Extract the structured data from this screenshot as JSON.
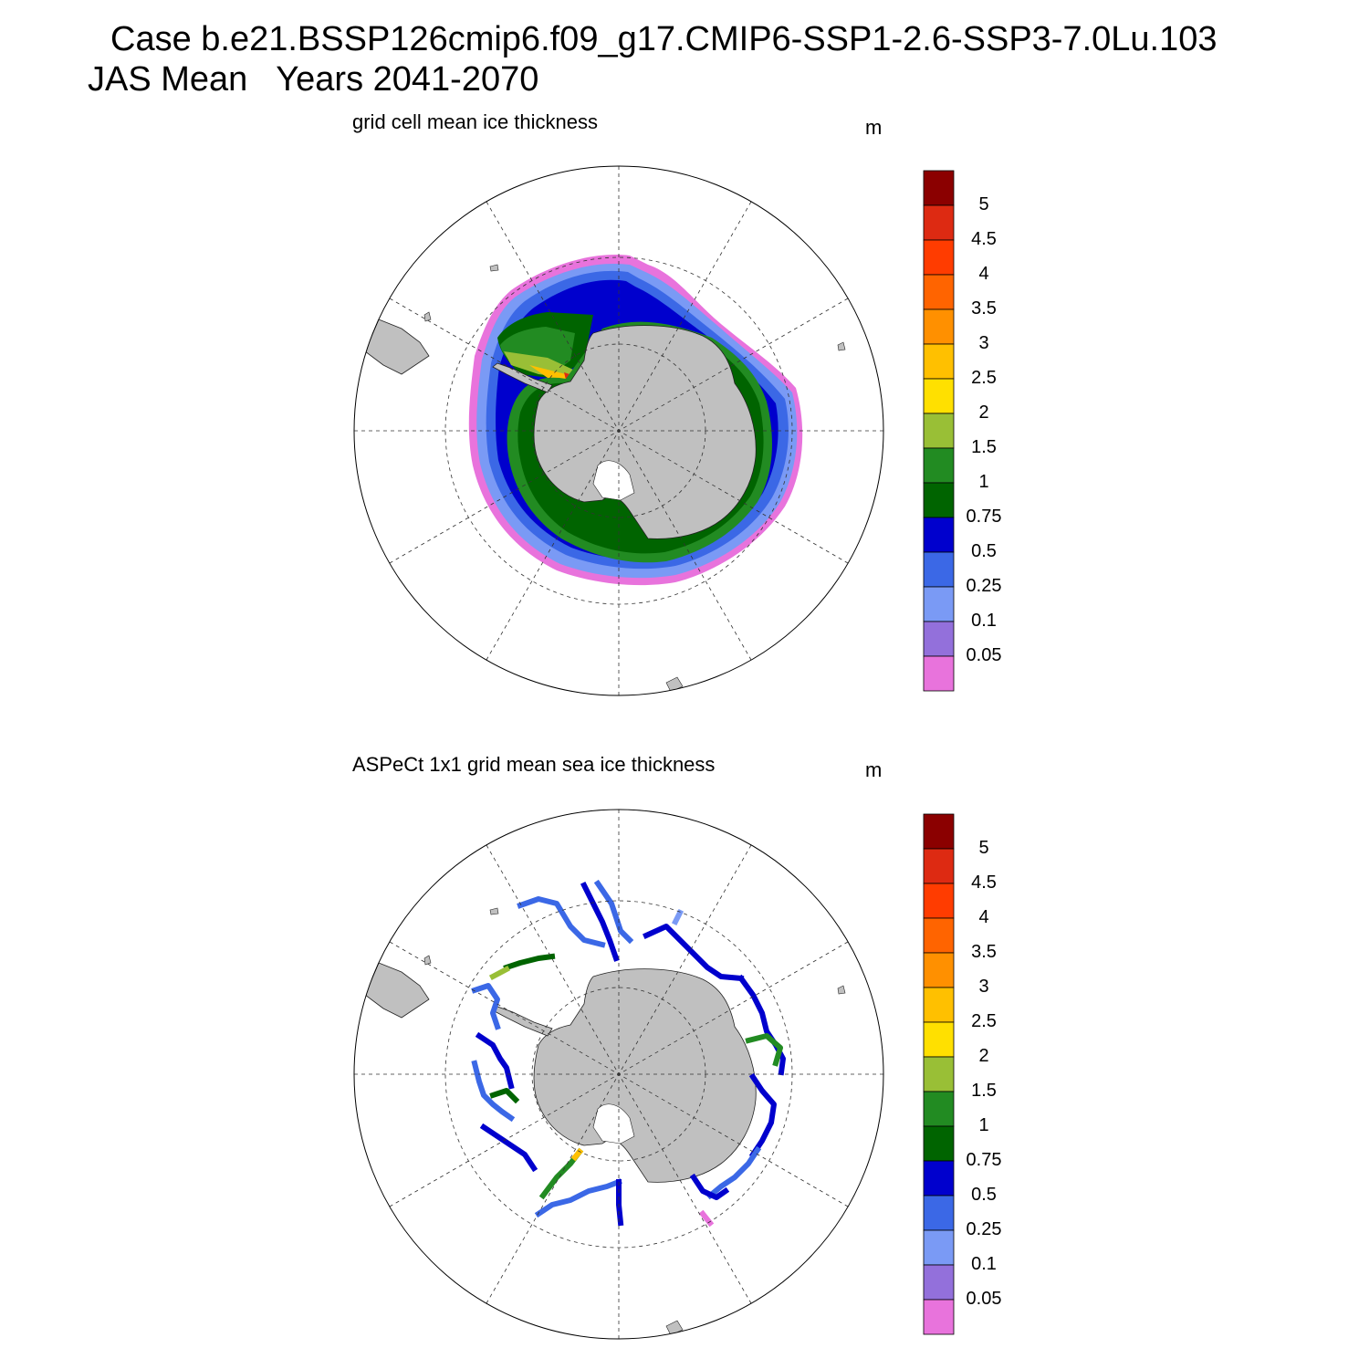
{
  "figure": {
    "title_line1": "Case b.e21.BSSP126cmip6.f09_g17.CMIP6-SSP1-2.6-SSP3-7.0Lu.103",
    "title_line2": "JAS Mean   Years 2041-2070"
  },
  "panels": [
    {
      "title": "grid cell mean ice thickness",
      "unit": "m"
    },
    {
      "title": "ASPeCt 1x1 grid mean sea ice thickness",
      "unit": "m"
    }
  ],
  "colorbar": {
    "labels": [
      "5",
      "4.5",
      "4",
      "3.5",
      "3",
      "2.5",
      "2",
      "1.5",
      "1",
      "0.75",
      "0.5",
      "0.25",
      "0.1",
      "0.05"
    ],
    "colors": [
      "#8b0000",
      "#dd2a12",
      "#ff3c00",
      "#ff6400",
      "#ff9000",
      "#ffc000",
      "#ffe000",
      "#99bf36",
      "#228b22",
      "#006400",
      "#0000cd",
      "#3b68e6",
      "#7a9af5",
      "#9370db",
      "#e873dc"
    ]
  },
  "map": {
    "land_color": "#c0c0c0",
    "grid_style": "dashed",
    "projection": "south polar stereographic"
  }
}
